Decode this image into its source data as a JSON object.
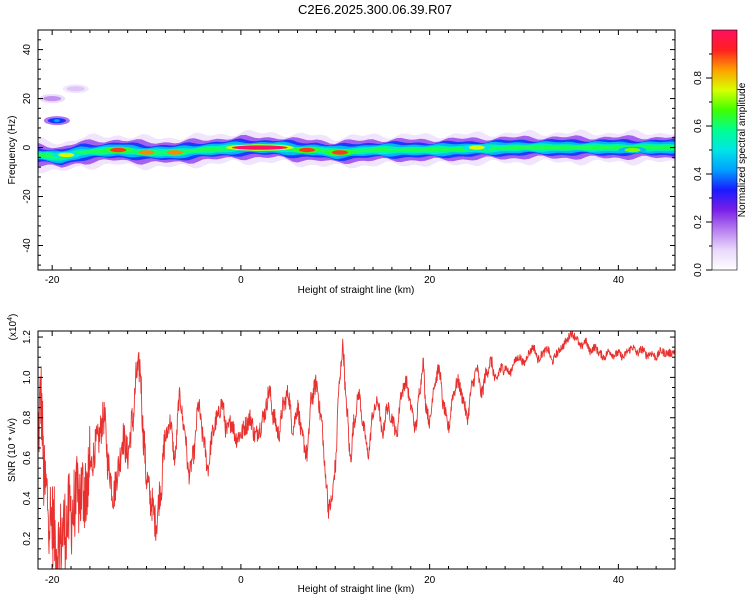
{
  "title": "C2E6.2025.300.06.39.R07",
  "colors": {
    "snr_line": "#e8312f",
    "axis": "#000000",
    "background": "#ffffff",
    "colormap": [
      "#ffffff",
      "#e9d8fb",
      "#b87ff0",
      "#7a1fe8",
      "#1a1aff",
      "#00a0ff",
      "#00e5e5",
      "#00ff90",
      "#40ff00",
      "#d8ff00",
      "#ffa000",
      "#ff2020",
      "#ff1060"
    ]
  },
  "chart_data": [
    {
      "type": "heatmap",
      "name": "spectrogram",
      "xlabel": "Height of straight line (km)",
      "ylabel": "Frequency (Hz)",
      "xlim": [
        -21.5,
        46
      ],
      "ylim": [
        -50,
        48
      ],
      "xticks": [
        -20,
        0,
        20,
        40
      ],
      "yticks": [
        -40,
        -20,
        0,
        20,
        40
      ],
      "band": {
        "center_freq_hz": [
          [
            -21.5,
            -3
          ],
          [
            -19,
            -4
          ],
          [
            -17,
            -2
          ],
          [
            -13,
            -1
          ],
          [
            -10,
            -2
          ],
          [
            -7,
            -2
          ],
          [
            -4,
            -1
          ],
          [
            0,
            0
          ],
          [
            4,
            0
          ],
          [
            6,
            -1
          ],
          [
            8,
            -1
          ],
          [
            10,
            -2
          ],
          [
            14,
            -1
          ],
          [
            20,
            -1
          ],
          [
            30,
            0
          ],
          [
            40,
            0
          ],
          [
            46,
            0
          ]
        ],
        "hotspots": [
          {
            "x": 2,
            "y": 0,
            "value": 1.0
          },
          {
            "x": -18.5,
            "y": -3,
            "value": 0.75
          },
          {
            "x": -13,
            "y": -1,
            "value": 0.9
          },
          {
            "x": -10,
            "y": -2,
            "value": 0.85
          },
          {
            "x": -7,
            "y": -2,
            "value": 0.85
          },
          {
            "x": 7,
            "y": -1,
            "value": 0.9
          },
          {
            "x": 10.5,
            "y": -2,
            "value": 0.9
          },
          {
            "x": 25,
            "y": 0,
            "value": 0.75
          },
          {
            "x": 41.5,
            "y": -1,
            "value": 0.7
          }
        ],
        "side_blobs": [
          {
            "x": -19.5,
            "y": 11,
            "value": 0.35
          },
          {
            "x": -20,
            "y": 20,
            "value": 0.15
          },
          {
            "x": -17.5,
            "y": 24,
            "value": 0.1
          }
        ]
      },
      "colorbar": {
        "label": "Normalized spectral amplitude",
        "range": [
          0,
          1
        ],
        "ticks": [
          0.0,
          0.2,
          0.4,
          0.6,
          0.8
        ]
      }
    },
    {
      "type": "line",
      "name": "snr",
      "xlabel": "Height of straight line (km)",
      "ylabel": "SNR (10 * v/v)",
      "yscale_label": "(x10",
      "yscale_exp": "4",
      "yscale_close": ")",
      "xlim": [
        -21.5,
        46
      ],
      "ylim": [
        0.05,
        1.23
      ],
      "xticks": [
        -20,
        0,
        20,
        40
      ],
      "yticks": [
        0.2,
        0.4,
        0.6,
        0.8,
        1.0,
        1.2
      ],
      "ytick_labels": [
        "0.2",
        "0.4",
        "0.6",
        "0.8",
        "1.0",
        "1.2"
      ],
      "envelope": [
        [
          -21.5,
          0.72
        ],
        [
          -21.2,
          0.9
        ],
        [
          -20.8,
          0.45
        ],
        [
          -20,
          0.28
        ],
        [
          -19.4,
          0.15
        ],
        [
          -18.7,
          0.25
        ],
        [
          -18,
          0.33
        ],
        [
          -17,
          0.42
        ],
        [
          -16.5,
          0.45
        ],
        [
          -16,
          0.55
        ],
        [
          -15.2,
          0.68
        ],
        [
          -14.5,
          0.8
        ],
        [
          -14,
          0.55
        ],
        [
          -13.5,
          0.42
        ],
        [
          -13,
          0.55
        ],
        [
          -12.5,
          0.7
        ],
        [
          -12,
          0.62
        ],
        [
          -11.5,
          0.78
        ],
        [
          -11,
          1.02
        ],
        [
          -10.7,
          1.05
        ],
        [
          -10.3,
          0.7
        ],
        [
          -10,
          0.5
        ],
        [
          -9.5,
          0.38
        ],
        [
          -9,
          0.28
        ],
        [
          -8.5,
          0.45
        ],
        [
          -8,
          0.7
        ],
        [
          -7.5,
          0.78
        ],
        [
          -7,
          0.6
        ],
        [
          -6.5,
          0.9
        ],
        [
          -6,
          0.75
        ],
        [
          -5.5,
          0.52
        ],
        [
          -5,
          0.62
        ],
        [
          -4.5,
          0.86
        ],
        [
          -4,
          0.7
        ],
        [
          -3.5,
          0.55
        ],
        [
          -3,
          0.72
        ],
        [
          -2.5,
          0.8
        ],
        [
          -2,
          0.87
        ],
        [
          -1.5,
          0.73
        ],
        [
          -1,
          0.78
        ],
        [
          -0.5,
          0.7
        ],
        [
          0,
          0.72
        ],
        [
          0.5,
          0.76
        ],
        [
          1,
          0.8
        ],
        [
          1.5,
          0.71
        ],
        [
          2,
          0.75
        ],
        [
          2.5,
          0.82
        ],
        [
          3,
          0.93
        ],
        [
          3.5,
          0.8
        ],
        [
          4,
          0.72
        ],
        [
          4.5,
          0.86
        ],
        [
          5,
          0.92
        ],
        [
          5.5,
          0.75
        ],
        [
          6,
          0.85
        ],
        [
          6.5,
          0.7
        ],
        [
          7,
          0.62
        ],
        [
          7.5,
          0.9
        ],
        [
          8,
          0.97
        ],
        [
          8.5,
          0.8
        ],
        [
          9,
          0.5
        ],
        [
          9.3,
          0.35
        ],
        [
          9.6,
          0.38
        ],
        [
          10,
          0.55
        ],
        [
          10.4,
          0.95
        ],
        [
          10.8,
          1.15
        ],
        [
          11.2,
          0.85
        ],
        [
          11.6,
          0.6
        ],
        [
          12,
          0.78
        ],
        [
          12.5,
          0.92
        ],
        [
          13,
          0.75
        ],
        [
          13.5,
          0.62
        ],
        [
          14,
          0.82
        ],
        [
          14.5,
          0.88
        ],
        [
          15,
          0.72
        ],
        [
          15.5,
          0.85
        ],
        [
          16,
          0.8
        ],
        [
          16.5,
          0.72
        ],
        [
          17,
          0.92
        ],
        [
          17.5,
          0.98
        ],
        [
          18,
          0.86
        ],
        [
          18.5,
          0.75
        ],
        [
          19,
          0.95
        ],
        [
          19.3,
          1.08
        ],
        [
          19.6,
          0.86
        ],
        [
          20,
          0.78
        ],
        [
          20.5,
          0.97
        ],
        [
          21,
          1.04
        ],
        [
          21.5,
          0.85
        ],
        [
          22,
          0.75
        ],
        [
          22.5,
          0.92
        ],
        [
          23,
          0.98
        ],
        [
          23.5,
          0.9
        ],
        [
          24,
          0.8
        ],
        [
          24.5,
          0.96
        ],
        [
          25,
          1.04
        ],
        [
          25.5,
          0.92
        ],
        [
          26,
          1.02
        ],
        [
          26.5,
          1.08
        ],
        [
          27,
          0.98
        ],
        [
          27.5,
          1.04
        ],
        [
          28,
          1.05
        ],
        [
          28.5,
          1.02
        ],
        [
          29,
          1.08
        ],
        [
          29.5,
          1.1
        ],
        [
          30,
          1.07
        ],
        [
          30.5,
          1.12
        ],
        [
          31,
          1.15
        ],
        [
          31.5,
          1.09
        ],
        [
          32,
          1.12
        ],
        [
          32.5,
          1.14
        ],
        [
          33,
          1.08
        ],
        [
          33.5,
          1.12
        ],
        [
          34,
          1.15
        ],
        [
          34.5,
          1.18
        ],
        [
          35,
          1.22
        ],
        [
          35.5,
          1.2
        ],
        [
          36,
          1.15
        ],
        [
          36.5,
          1.18
        ],
        [
          37,
          1.13
        ],
        [
          37.5,
          1.15
        ],
        [
          38,
          1.12
        ],
        [
          38.5,
          1.1
        ],
        [
          39,
          1.13
        ],
        [
          39.5,
          1.11
        ],
        [
          40,
          1.12
        ],
        [
          40.5,
          1.1
        ],
        [
          41,
          1.13
        ],
        [
          41.5,
          1.15
        ],
        [
          42,
          1.12
        ],
        [
          42.5,
          1.14
        ],
        [
          43,
          1.11
        ],
        [
          43.5,
          1.12
        ],
        [
          44,
          1.1
        ],
        [
          44.5,
          1.13
        ],
        [
          45,
          1.12
        ],
        [
          45.5,
          1.12
        ],
        [
          46,
          1.13
        ]
      ]
    }
  ]
}
